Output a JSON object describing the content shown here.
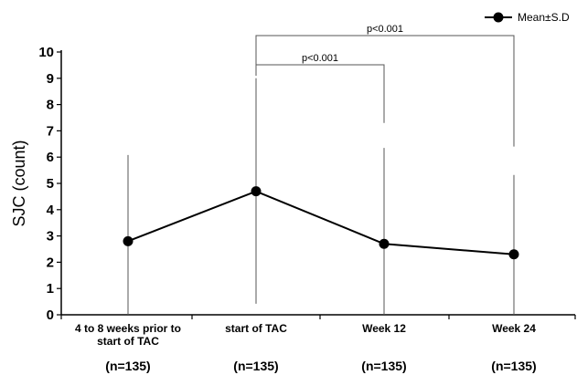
{
  "chart_data": {
    "type": "line",
    "categories": [
      "4 to 8 weeks prior to start of TAC",
      "start of TAC",
      "Week 12",
      "Week 24"
    ],
    "category_lines": [
      [
        "4 to 8 weeks prior to",
        "start of TAC"
      ],
      [
        "start of TAC"
      ],
      [
        "Week 12"
      ],
      [
        "Week 24"
      ]
    ],
    "n_labels": [
      "(n=135)",
      "(n=135)",
      "(n=135)",
      "(n=135)"
    ],
    "series": [
      {
        "name": "Mean±S.D",
        "values": [
          2.8,
          4.7,
          2.7,
          2.3
        ],
        "sd_upper": [
          6.08,
          9.0,
          6.35,
          5.32
        ],
        "sd_lower": [
          0.0,
          0.42,
          0.0,
          0.0
        ]
      }
    ],
    "ylabel": "SJC (count)",
    "ylim": [
      0,
      10
    ],
    "yticks": [
      "0",
      "1",
      "2",
      "3",
      "4",
      "5",
      "6",
      "7",
      "8",
      "9",
      "10"
    ],
    "grid": false,
    "legend": "top-right",
    "annotations": [
      {
        "label": "p<0.001",
        "from": 1,
        "to": 2
      },
      {
        "label": "p<0.001",
        "from": 1,
        "to": 3
      }
    ],
    "colors": {
      "line": "#000000",
      "marker": "#000000",
      "axis": "#000000",
      "errorbar": "#555555",
      "bracket": "#555555"
    }
  }
}
